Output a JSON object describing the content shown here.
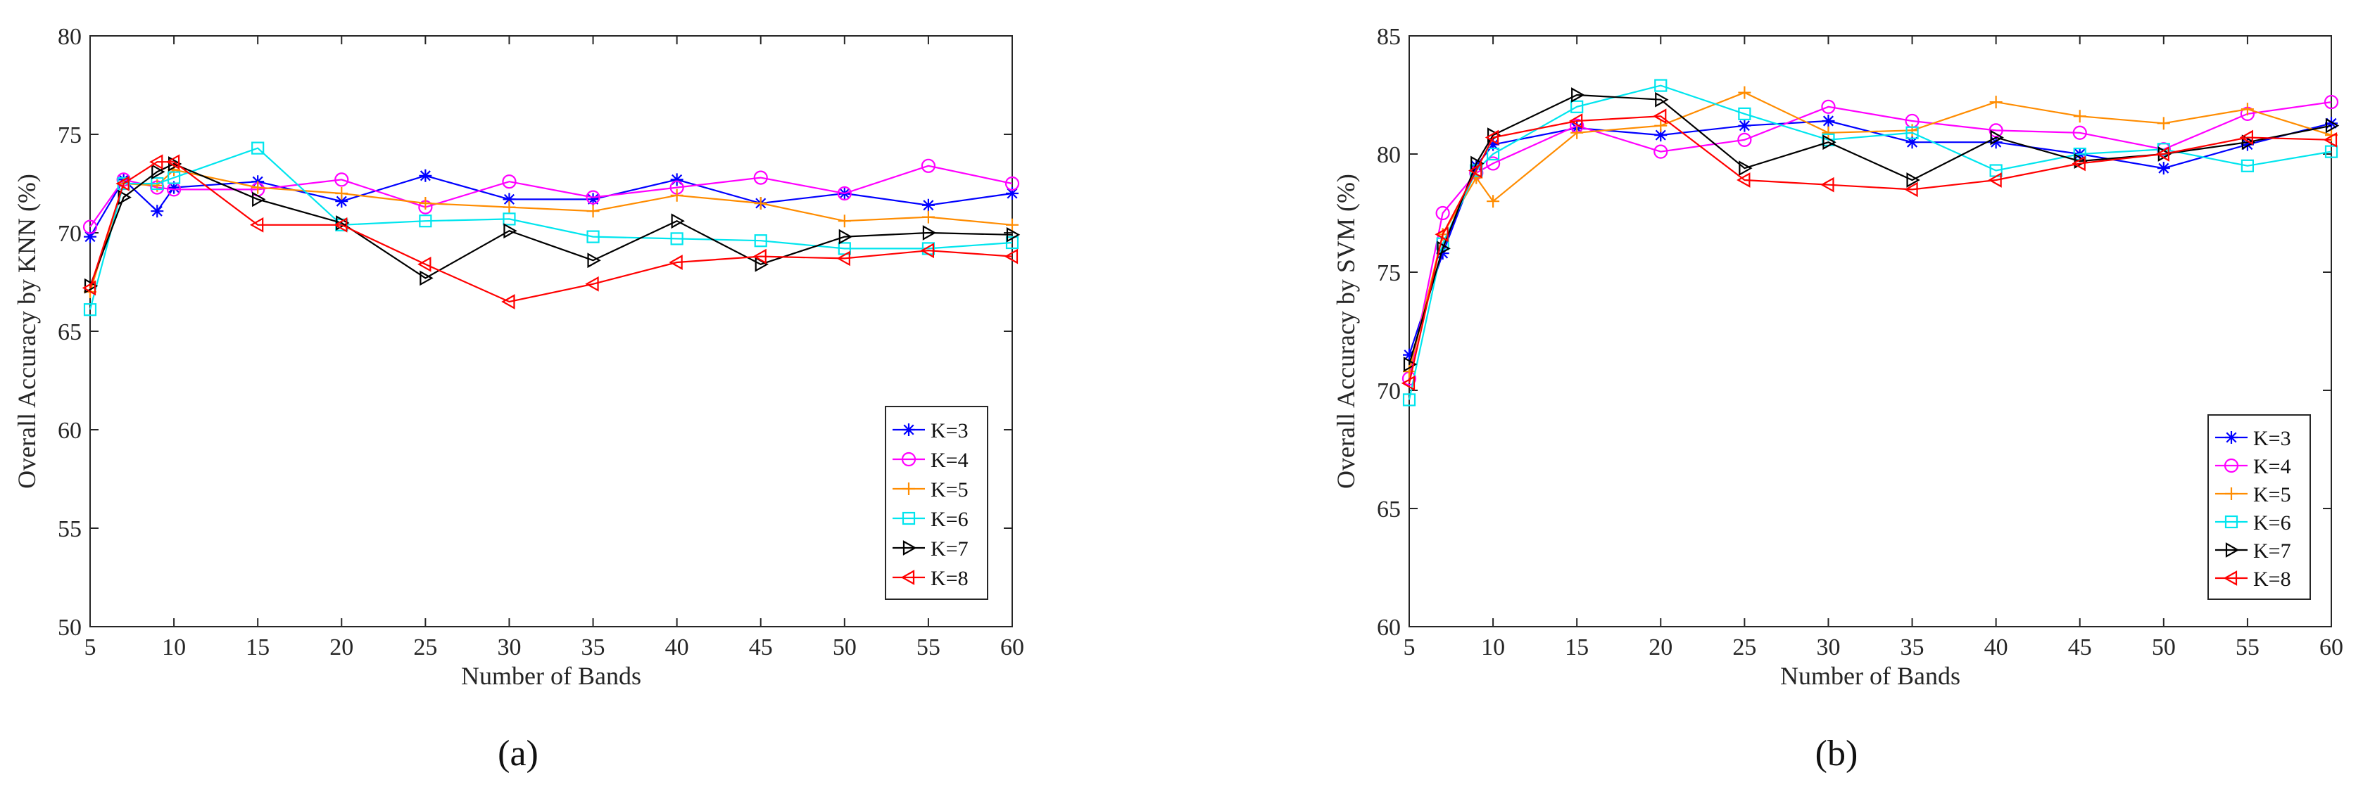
{
  "chart_data": [
    {
      "type": "line",
      "caption": "(a)",
      "xlabel": "Number of Bands",
      "ylabel": "Overall Accuracy by KNN (%)",
      "xlim": [
        5,
        60
      ],
      "ylim": [
        50,
        80
      ],
      "xticks": [
        5,
        10,
        15,
        20,
        25,
        30,
        35,
        40,
        45,
        50,
        55,
        60
      ],
      "yticks": [
        50,
        55,
        60,
        65,
        70,
        75,
        80
      ],
      "x": [
        5,
        7,
        9,
        10,
        15,
        20,
        25,
        30,
        35,
        40,
        45,
        50,
        55,
        60
      ],
      "series": [
        {
          "name": "K=3",
          "color": "#0000ff",
          "marker": "star",
          "values": [
            69.8,
            72.7,
            71.1,
            72.3,
            72.6,
            71.6,
            72.9,
            71.7,
            71.7,
            72.7,
            71.5,
            72.0,
            71.4,
            72.0
          ]
        },
        {
          "name": "K=4",
          "color": "#ff00ff",
          "marker": "circle",
          "values": [
            70.3,
            72.7,
            72.3,
            72.2,
            72.2,
            72.7,
            71.3,
            72.6,
            71.8,
            72.3,
            72.8,
            72.0,
            73.4,
            72.5
          ]
        },
        {
          "name": "K=5",
          "color": "#ff8c00",
          "marker": "plus",
          "values": [
            67.0,
            72.5,
            72.4,
            73.2,
            72.3,
            72.0,
            71.5,
            71.3,
            71.1,
            71.9,
            71.5,
            70.6,
            70.8,
            70.4
          ]
        },
        {
          "name": "K=6",
          "color": "#00e5ee",
          "marker": "square",
          "values": [
            66.1,
            72.5,
            72.5,
            72.8,
            74.3,
            70.4,
            70.6,
            70.7,
            69.8,
            69.7,
            69.6,
            69.2,
            69.2,
            69.5
          ]
        },
        {
          "name": "K=7",
          "color": "#000000",
          "marker": "tri-right",
          "values": [
            67.3,
            71.8,
            73.1,
            73.5,
            71.7,
            70.5,
            67.7,
            70.1,
            68.6,
            70.6,
            68.4,
            69.8,
            70.0,
            69.9
          ]
        },
        {
          "name": "K=8",
          "color": "#ff0000",
          "marker": "tri-left",
          "values": [
            67.2,
            72.5,
            73.6,
            73.6,
            70.4,
            70.4,
            68.4,
            66.5,
            67.4,
            68.5,
            68.8,
            68.7,
            69.1,
            68.8
          ]
        }
      ],
      "legend": "bottom-right"
    },
    {
      "type": "line",
      "caption": "(b)",
      "xlabel": "Number of Bands",
      "ylabel": "Overall Accuracy by SVM (%)",
      "xlim": [
        5,
        60
      ],
      "ylim": [
        60,
        85
      ],
      "xticks": [
        5,
        10,
        15,
        20,
        25,
        30,
        35,
        40,
        45,
        50,
        55,
        60
      ],
      "yticks": [
        60,
        65,
        70,
        75,
        80,
        85
      ],
      "x": [
        5,
        7,
        9,
        10,
        15,
        20,
        25,
        30,
        35,
        40,
        45,
        50,
        55,
        60
      ],
      "series": [
        {
          "name": "K=3",
          "color": "#0000ff",
          "marker": "star",
          "values": [
            71.5,
            75.8,
            79.5,
            80.4,
            81.1,
            80.8,
            81.2,
            81.4,
            80.5,
            80.5,
            80.0,
            79.4,
            80.4,
            81.3
          ]
        },
        {
          "name": "K=4",
          "color": "#ff00ff",
          "marker": "circle",
          "values": [
            70.5,
            77.5,
            79.2,
            79.6,
            81.2,
            80.1,
            80.6,
            82.0,
            81.4,
            81.0,
            80.9,
            80.2,
            81.7,
            82.2
          ]
        },
        {
          "name": "K=5",
          "color": "#ff8c00",
          "marker": "plus",
          "values": [
            70.8,
            76.6,
            79.0,
            78.0,
            80.9,
            81.2,
            82.6,
            80.9,
            81.0,
            82.2,
            81.6,
            81.3,
            81.9,
            80.8
          ]
        },
        {
          "name": "K=6",
          "color": "#00e5ee",
          "marker": "square",
          "values": [
            69.6,
            76.2,
            79.3,
            80.0,
            82.0,
            82.9,
            81.7,
            80.6,
            80.9,
            79.3,
            80.0,
            80.2,
            79.5,
            80.1
          ]
        },
        {
          "name": "K=7",
          "color": "#000000",
          "marker": "tri-right",
          "values": [
            71.1,
            76.0,
            79.6,
            80.8,
            82.5,
            82.3,
            79.4,
            80.5,
            78.9,
            80.7,
            79.7,
            80.0,
            80.5,
            81.2
          ]
        },
        {
          "name": "K=8",
          "color": "#ff0000",
          "marker": "tri-left",
          "values": [
            70.3,
            76.6,
            79.3,
            80.7,
            81.4,
            81.6,
            78.9,
            78.7,
            78.5,
            78.9,
            79.6,
            80.0,
            80.7,
            80.6
          ]
        }
      ],
      "legend": "bottom-right"
    }
  ]
}
